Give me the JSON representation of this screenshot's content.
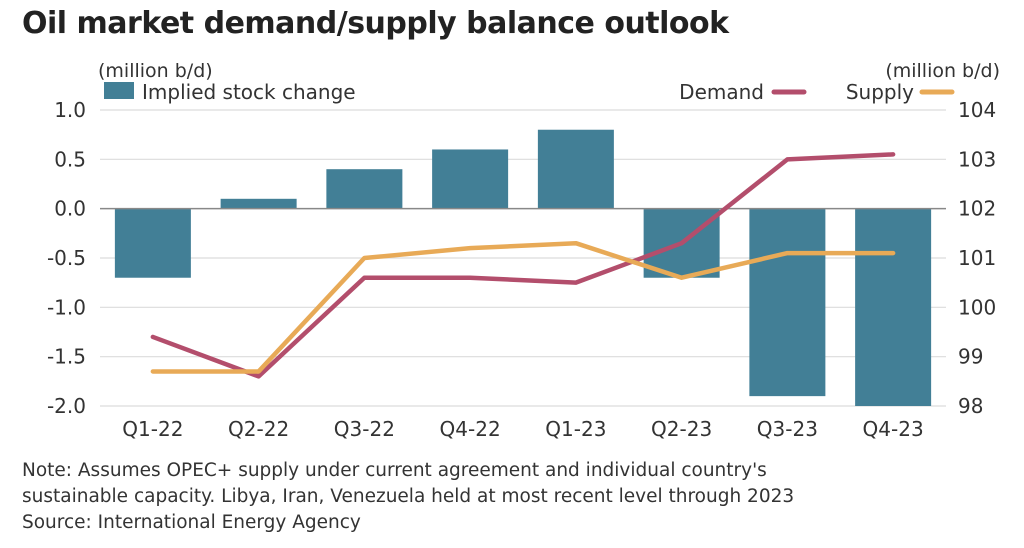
{
  "title": "Oil market demand/supply balance outlook",
  "notes": [
    "Note: Assumes OPEC+ supply under current agreement and individual country's",
    "sustainable capacity. Libya, Iran, Venezuela held at most recent level through 2023",
    "Source: International Energy Agency"
  ],
  "chart_data": {
    "type": "bar+line",
    "categories": [
      "Q1-22",
      "Q2-22",
      "Q3-22",
      "Q4-22",
      "Q1-23",
      "Q2-23",
      "Q3-23",
      "Q4-23"
    ],
    "left_axis": {
      "label": "(million b/d)",
      "range": [
        -2.0,
        1.0
      ],
      "ticks": [
        "1.0",
        "0.5",
        "0.0",
        "-0.5",
        "-1.0",
        "-1.5",
        "-2.0"
      ]
    },
    "right_axis": {
      "label": "(million b/d)",
      "range": [
        98,
        104
      ],
      "ticks": [
        "104",
        "103",
        "102",
        "101",
        "100",
        "99",
        "98"
      ]
    },
    "grid": true,
    "legend_position": "top",
    "series": [
      {
        "name": "Implied stock change",
        "type": "bar",
        "axis": "left",
        "color": "#427f96",
        "values": [
          -0.7,
          0.1,
          0.4,
          0.6,
          0.8,
          -0.7,
          -1.9,
          -2.0
        ]
      },
      {
        "name": "Demand",
        "type": "line",
        "axis": "right",
        "color": "#b34e6c",
        "values": [
          99.4,
          98.6,
          100.6,
          100.6,
          100.5,
          101.3,
          103.0,
          103.1
        ]
      },
      {
        "name": "Supply",
        "type": "line",
        "axis": "right",
        "color": "#e8aa57",
        "values": [
          98.7,
          98.7,
          101.0,
          101.2,
          101.3,
          100.6,
          101.1,
          101.1
        ]
      }
    ]
  }
}
